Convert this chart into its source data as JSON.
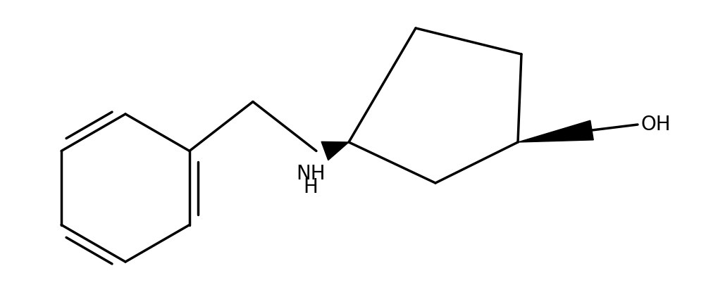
{
  "background": "#ffffff",
  "line_color": "#000000",
  "line_width": 2.5,
  "font_size_label": 20,
  "label_NH": "NH",
  "label_H": "H",
  "label_OH": "OH"
}
